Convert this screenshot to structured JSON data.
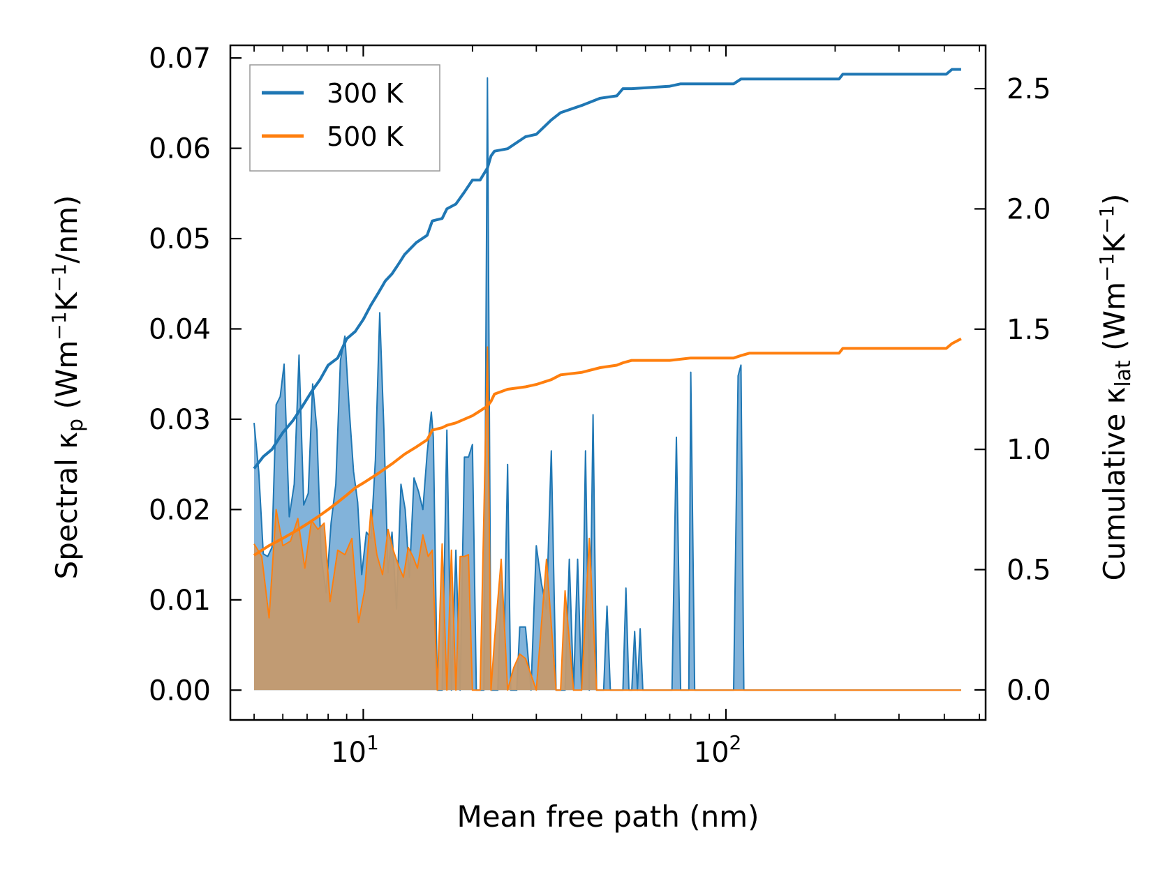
{
  "chart_data": {
    "type": "area",
    "xlabel": "Mean free path (nm)",
    "xscale": "log",
    "xlim": [
      4.3,
      520
    ],
    "xticks": [
      10,
      100
    ],
    "xtick_labels": [
      {
        "base": "10",
        "exp": "1"
      },
      {
        "base": "10",
        "exp": "2"
      }
    ],
    "ylabel_left": {
      "main": "Spectral κ",
      "sub": "p",
      "unit_a": " (Wm",
      "sup1": "−1",
      "unit_b": "K",
      "sup2": "−1",
      "unit_c": "/nm)"
    },
    "ylim_left": [
      -0.0033,
      0.0714
    ],
    "yticks_left": [
      "0.00",
      "0.01",
      "0.02",
      "0.03",
      "0.04",
      "0.05",
      "0.06",
      "0.07"
    ],
    "ylabel_right": {
      "main": "Cumulative κ",
      "sub": "lat",
      "unit_a": " (Wm",
      "sup1": "−1",
      "unit_b": "K",
      "sup2": "−1",
      "unit_c": ")"
    },
    "ylim_right": [
      -0.125,
      2.68
    ],
    "yticks_right": [
      "0.0",
      "0.5",
      "1.0",
      "1.5",
      "2.0",
      "2.5"
    ],
    "legend": {
      "location": "upper-left",
      "entries": [
        {
          "label": "300 K",
          "color": "#1f77b4"
        },
        {
          "label": "500 K",
          "color": "#ff7f0e"
        }
      ]
    },
    "spectral_300K": {
      "x": [
        5.0,
        5.15,
        5.3,
        5.45,
        5.6,
        5.75,
        5.9,
        6.05,
        6.25,
        6.45,
        6.65,
        6.85,
        7.05,
        7.25,
        7.45,
        7.65,
        7.9,
        8.15,
        8.4,
        8.65,
        8.9,
        9.15,
        9.4,
        9.65,
        9.9,
        10.2,
        10.5,
        10.8,
        11.1,
        11.4,
        11.7,
        12.0,
        12.35,
        12.7,
        13.05,
        13.4,
        13.8,
        14.2,
        14.6,
        15.0,
        15.4,
        15.6,
        16.0,
        16.5,
        17.0,
        17.5,
        18.0,
        18.5,
        19.0,
        19.5,
        20.0,
        20.5,
        21.0,
        21.5,
        22.0,
        22.5,
        23.0,
        23.5,
        24.0,
        24.5,
        25.0,
        25.5,
        26.0,
        26.5,
        27.0,
        28.0,
        29.0,
        30.0,
        31.0,
        32.0,
        33.0,
        34.0,
        35.0,
        36.0,
        37.0,
        38.0,
        39.0,
        40.0,
        41.0,
        42.0,
        43.0,
        44.0,
        45.0,
        46.0,
        47.0,
        48.0,
        49.0,
        50.0,
        51.0,
        52.0,
        53.0,
        54.0,
        55.0,
        56.0,
        57.0,
        58.0,
        59.0,
        60.0,
        70.0,
        71.0,
        73.0,
        75.0,
        77.0,
        78.0,
        79.0,
        80.0,
        82.0,
        84.0,
        86.0,
        105.0,
        108.0,
        110.0,
        112.0,
        116.0,
        120.0,
        205.0,
        209.0,
        212.0,
        216.0,
        220.0,
        410.0,
        420.0,
        425.0,
        430.0,
        435.0,
        440.0,
        445.0
      ],
      "y": [
        0.0296,
        0.0242,
        0.0151,
        0.0148,
        0.0158,
        0.0316,
        0.0325,
        0.0361,
        0.0192,
        0.0228,
        0.0371,
        0.0205,
        0.0218,
        0.0339,
        0.0288,
        0.0148,
        0.0108,
        0.0185,
        0.0228,
        0.0365,
        0.0392,
        0.031,
        0.0242,
        0.0208,
        0.0128,
        0.0175,
        0.0168,
        0.0255,
        0.0418,
        0.0288,
        0.013,
        0.0175,
        0.009,
        0.0228,
        0.02,
        0.0125,
        0.0235,
        0.022,
        0.02,
        0.0262,
        0.0308,
        0.028,
        0.0,
        0.0,
        0.0288,
        0.0,
        0.0155,
        0.0,
        0.0258,
        0.0258,
        0.0272,
        0.0,
        0.0,
        0.0,
        0.0678,
        0.0,
        0.0,
        0.0,
        0.012,
        0.0068,
        0.025,
        0.0,
        0.0,
        0.0,
        0.007,
        0.007,
        0.0,
        0.016,
        0.0118,
        0.009,
        0.0265,
        0.0,
        0.0,
        0.0,
        0.0145,
        0.0,
        0.0145,
        0.0,
        0.0265,
        0.0,
        0.0305,
        0.0,
        0.0,
        0.0,
        0.0093,
        0.0,
        0.0,
        0.0,
        0.0,
        0.0,
        0.0113,
        0.0,
        0.0,
        0.0065,
        0.0,
        0.0068,
        0.0,
        0.0,
        0.0,
        0.0,
        0.028,
        0.0,
        0.0,
        0.0,
        0.0,
        0.0352,
        0.0,
        0.0,
        0.0,
        0.0,
        0.0348,
        0.036,
        0.0,
        0.0,
        0.0,
        0.0,
        0.0,
        0.0,
        0.0,
        0.0,
        0.0,
        0.0,
        0.0,
        0.0,
        0.0,
        0.0,
        0.0
      ]
    },
    "spectral_500K": {
      "x": [
        5.0,
        5.25,
        5.5,
        5.75,
        6.0,
        6.3,
        6.6,
        6.9,
        7.2,
        7.5,
        7.8,
        8.1,
        8.5,
        8.9,
        9.3,
        9.7,
        10.1,
        10.5,
        10.9,
        11.3,
        11.7,
        12.1,
        12.5,
        12.9,
        13.3,
        13.7,
        14.1,
        14.6,
        15.1,
        15.5,
        16.0,
        16.5,
        17.0,
        17.5,
        18.0,
        18.5,
        19.0,
        19.5,
        20.0,
        21.0,
        22.0,
        22.5,
        23.0,
        24.0,
        25.0,
        26.0,
        27.0,
        28.0,
        30.0,
        32.0,
        34.0,
        35.0,
        36.0,
        38.0,
        40.0,
        42.0,
        44.0,
        46.0,
        48.0,
        50.0,
        52.0,
        54.0,
        56.0,
        58.0,
        60.0,
        70.0,
        73.0,
        75.0,
        77.0,
        79.0,
        82.0,
        84.0,
        105.0,
        110.0,
        116.0,
        205.0,
        210.0,
        216.0,
        410.0,
        425.0,
        440.0,
        445.0
      ],
      "y": [
        0.0162,
        0.0148,
        0.008,
        0.02,
        0.016,
        0.0165,
        0.019,
        0.0135,
        0.0188,
        0.0178,
        0.0185,
        0.0098,
        0.0155,
        0.015,
        0.0168,
        0.0075,
        0.0112,
        0.02,
        0.015,
        0.0128,
        0.0178,
        0.0155,
        0.0138,
        0.0125,
        0.0158,
        0.0148,
        0.0135,
        0.0172,
        0.0148,
        0.0155,
        0.0,
        0.0162,
        0.0,
        0.0155,
        0.0,
        0.0148,
        0.0148,
        0.015,
        0.0,
        0.0,
        0.038,
        0.0,
        0.0055,
        0.0145,
        0.0,
        0.0025,
        0.004,
        0.0035,
        0.0,
        0.0145,
        0.0,
        0.0,
        0.011,
        0.0,
        0.0,
        0.0168,
        0.0,
        0.0,
        0.0,
        0.0,
        0.0,
        0.0,
        0.0,
        0.0,
        0.0,
        0.0,
        0.0,
        0.0,
        0.0,
        0.0,
        0.0,
        0.0,
        0.0,
        0.0,
        0.0,
        0.0,
        0.0,
        0.0,
        0.0,
        0.0,
        0.0,
        0.0
      ]
    },
    "cumulative_300K": {
      "x": [
        5.0,
        5.3,
        5.6,
        6.0,
        6.4,
        6.8,
        7.2,
        7.6,
        8.0,
        8.5,
        9.0,
        9.5,
        10.0,
        10.5,
        11.0,
        11.5,
        12.0,
        12.5,
        13.0,
        14.0,
        15.0,
        15.5,
        16.5,
        17.0,
        18.0,
        19.0,
        20.0,
        21.0,
        22.0,
        22.5,
        23.0,
        25.0,
        28.0,
        30.0,
        33.0,
        35.0,
        40.0,
        45.0,
        50.0,
        52.0,
        55.0,
        70.0,
        75.0,
        80.0,
        105.0,
        110.0,
        116.0,
        205.0,
        210.0,
        405.0,
        420.0,
        445.0
      ],
      "y": [
        0.92,
        0.97,
        1.0,
        1.07,
        1.12,
        1.18,
        1.24,
        1.29,
        1.35,
        1.38,
        1.46,
        1.49,
        1.54,
        1.6,
        1.65,
        1.7,
        1.73,
        1.77,
        1.81,
        1.86,
        1.89,
        1.95,
        1.96,
        2.0,
        2.02,
        2.07,
        2.12,
        2.12,
        2.17,
        2.22,
        2.24,
        2.25,
        2.3,
        2.31,
        2.37,
        2.4,
        2.43,
        2.46,
        2.47,
        2.5,
        2.5,
        2.51,
        2.52,
        2.52,
        2.52,
        2.54,
        2.54,
        2.54,
        2.56,
        2.56,
        2.58,
        2.58
      ]
    },
    "cumulative_500K": {
      "x": [
        5.0,
        5.5,
        6.0,
        6.5,
        7.0,
        7.5,
        8.0,
        8.5,
        9.0,
        9.5,
        10.0,
        11.0,
        12.0,
        13.0,
        14.0,
        15.0,
        15.5,
        16.5,
        17.0,
        18.0,
        20.0,
        21.0,
        22.0,
        22.5,
        23.0,
        25.0,
        28.0,
        30.0,
        33.0,
        35.0,
        40.0,
        45.0,
        50.0,
        52.0,
        55.0,
        70.0,
        80.0,
        105.0,
        110.0,
        116.0,
        205.0,
        210.0,
        405.0,
        420.0,
        445.0
      ],
      "y": [
        0.56,
        0.6,
        0.63,
        0.66,
        0.69,
        0.72,
        0.75,
        0.78,
        0.81,
        0.84,
        0.86,
        0.9,
        0.94,
        0.98,
        1.01,
        1.04,
        1.08,
        1.09,
        1.1,
        1.11,
        1.14,
        1.16,
        1.18,
        1.2,
        1.23,
        1.25,
        1.26,
        1.27,
        1.29,
        1.31,
        1.32,
        1.34,
        1.35,
        1.36,
        1.37,
        1.37,
        1.38,
        1.38,
        1.39,
        1.4,
        1.4,
        1.42,
        1.42,
        1.44,
        1.46
      ]
    },
    "colors": {
      "c300": "#1f77b4",
      "c500": "#ff7f0e",
      "fill300": "#7bafd8",
      "fill500": "#c49a6e"
    }
  }
}
